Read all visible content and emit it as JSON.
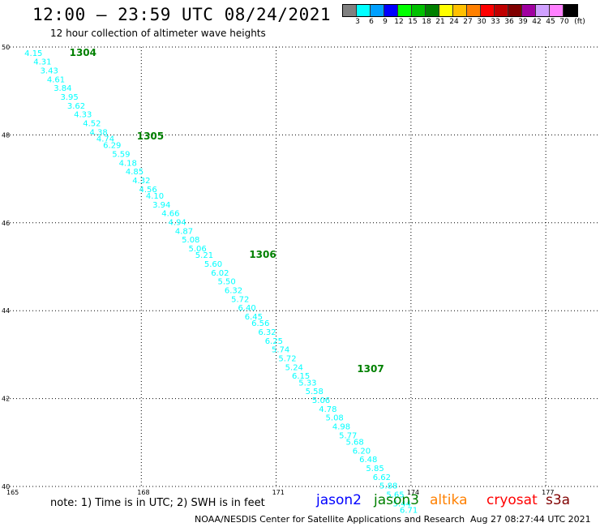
{
  "header": {
    "title": "12:00 – 23:59 UTC 08/24/2021",
    "subtitle": "12 hour collection of altimeter wave heights"
  },
  "colorbar": {
    "labels": [
      "3",
      "6",
      "9",
      "12",
      "15",
      "18",
      "21",
      "24",
      "27",
      "30",
      "33",
      "36",
      "39",
      "42",
      "45",
      "70"
    ],
    "unit": "(ft)",
    "colors": [
      "#808080",
      "#00ffff",
      "#00a0ff",
      "#0000ff",
      "#00ff00",
      "#00c000",
      "#008000",
      "#ffff00",
      "#ffc000",
      "#ff8000",
      "#ff0000",
      "#c00000",
      "#800000",
      "#a000a0",
      "#d0a0ff",
      "#ff80ff",
      "#000000"
    ]
  },
  "footer": {
    "note": "note:  1) Time is in UTC;  2) SWH is in feet",
    "satellites": [
      {
        "name": "jason2",
        "color": "#0000ff"
      },
      {
        "name": "jason3",
        "color": "#008000"
      },
      {
        "name": "altika",
        "color": "#ff8000"
      },
      {
        "name": "cryosat",
        "color": "#ff0000"
      },
      {
        "name": "s3a",
        "color": "#800000"
      }
    ],
    "credit": "NOAA/NESDIS Center for Satellite Applications and Research",
    "timestamp": "Aug 27 08:27:44 UTC 2021"
  },
  "chart_data": {
    "type": "scatter",
    "xlim": [
      165,
      179
    ],
    "ylim": [
      40,
      50
    ],
    "xticks": [
      165,
      168,
      171,
      174,
      177
    ],
    "yticks": [
      40,
      42,
      44,
      46,
      48,
      50
    ],
    "grid": true,
    "point_color": "#00ffff",
    "time_label_color": "#008000",
    "time_labels": [
      {
        "text": "1304",
        "lon": 166.4,
        "lat": 49.8
      },
      {
        "text": "1305",
        "lon": 167.9,
        "lat": 47.9
      },
      {
        "text": "1306",
        "lon": 170.4,
        "lat": 45.2
      },
      {
        "text": "1307",
        "lon": 172.8,
        "lat": 42.6
      }
    ],
    "points": [
      {
        "lon": 165.4,
        "lat": 49.8,
        "swh": "4.15"
      },
      {
        "lon": 165.6,
        "lat": 49.6,
        "swh": "4.31"
      },
      {
        "lon": 165.75,
        "lat": 49.4,
        "swh": "3.43"
      },
      {
        "lon": 165.9,
        "lat": 49.2,
        "swh": "4.61"
      },
      {
        "lon": 166.05,
        "lat": 49.0,
        "swh": "3.84"
      },
      {
        "lon": 166.2,
        "lat": 48.8,
        "swh": "3.95"
      },
      {
        "lon": 166.35,
        "lat": 48.6,
        "swh": "3.62"
      },
      {
        "lon": 166.5,
        "lat": 48.4,
        "swh": "4.33"
      },
      {
        "lon": 166.7,
        "lat": 48.2,
        "swh": "4.52"
      },
      {
        "lon": 166.85,
        "lat": 48.0,
        "swh": "4.38"
      },
      {
        "lon": 167.0,
        "lat": 47.85,
        "swh": "4.74"
      },
      {
        "lon": 167.15,
        "lat": 47.7,
        "swh": "6.29"
      },
      {
        "lon": 167.35,
        "lat": 47.5,
        "swh": "5.59"
      },
      {
        "lon": 167.5,
        "lat": 47.3,
        "swh": "4.18"
      },
      {
        "lon": 167.65,
        "lat": 47.1,
        "swh": "4.85"
      },
      {
        "lon": 167.8,
        "lat": 46.9,
        "swh": "4.32"
      },
      {
        "lon": 167.95,
        "lat": 46.7,
        "swh": "4.56"
      },
      {
        "lon": 168.1,
        "lat": 46.55,
        "swh": "4.10"
      },
      {
        "lon": 168.25,
        "lat": 46.35,
        "swh": "3.94"
      },
      {
        "lon": 168.45,
        "lat": 46.15,
        "swh": "4.66"
      },
      {
        "lon": 168.6,
        "lat": 45.95,
        "swh": "4.94"
      },
      {
        "lon": 168.75,
        "lat": 45.75,
        "swh": "4.87"
      },
      {
        "lon": 168.9,
        "lat": 45.55,
        "swh": "5.08"
      },
      {
        "lon": 169.05,
        "lat": 45.35,
        "swh": "5.06"
      },
      {
        "lon": 169.2,
        "lat": 45.2,
        "swh": "5.21"
      },
      {
        "lon": 169.4,
        "lat": 45.0,
        "swh": "5.60"
      },
      {
        "lon": 169.55,
        "lat": 44.8,
        "swh": "6.02"
      },
      {
        "lon": 169.7,
        "lat": 44.6,
        "swh": "5.50"
      },
      {
        "lon": 169.85,
        "lat": 44.4,
        "swh": "6.32"
      },
      {
        "lon": 170.0,
        "lat": 44.2,
        "swh": "5.72"
      },
      {
        "lon": 170.15,
        "lat": 44.0,
        "swh": "6.40"
      },
      {
        "lon": 170.3,
        "lat": 43.8,
        "swh": "6.45"
      },
      {
        "lon": 170.45,
        "lat": 43.65,
        "swh": "6.56"
      },
      {
        "lon": 170.6,
        "lat": 43.45,
        "swh": "6.32"
      },
      {
        "lon": 170.75,
        "lat": 43.25,
        "swh": "6.25"
      },
      {
        "lon": 170.9,
        "lat": 43.05,
        "swh": "5.74"
      },
      {
        "lon": 171.05,
        "lat": 42.85,
        "swh": "5.72"
      },
      {
        "lon": 171.2,
        "lat": 42.65,
        "swh": "5.24"
      },
      {
        "lon": 171.35,
        "lat": 42.45,
        "swh": "6.15"
      },
      {
        "lon": 171.5,
        "lat": 42.3,
        "swh": "5.33"
      },
      {
        "lon": 171.65,
        "lat": 42.1,
        "swh": "5.58"
      },
      {
        "lon": 171.8,
        "lat": 41.9,
        "swh": "5.06"
      },
      {
        "lon": 171.95,
        "lat": 41.7,
        "swh": "4.78"
      },
      {
        "lon": 172.1,
        "lat": 41.5,
        "swh": "5.08"
      },
      {
        "lon": 172.25,
        "lat": 41.3,
        "swh": "4.98"
      },
      {
        "lon": 172.4,
        "lat": 41.1,
        "swh": "5.77"
      },
      {
        "lon": 172.55,
        "lat": 40.95,
        "swh": "5.68"
      },
      {
        "lon": 172.7,
        "lat": 40.75,
        "swh": "6.20"
      },
      {
        "lon": 172.85,
        "lat": 40.55,
        "swh": "6.48"
      },
      {
        "lon": 173.0,
        "lat": 40.35,
        "swh": "5.85"
      },
      {
        "lon": 173.15,
        "lat": 40.15,
        "swh": "6.62"
      },
      {
        "lon": 173.3,
        "lat": 39.95,
        "swh": "5.88"
      },
      {
        "lon": 173.45,
        "lat": 39.75,
        "swh": "5.65"
      },
      {
        "lon": 173.6,
        "lat": 39.55,
        "swh": "5.44"
      },
      {
        "lon": 173.75,
        "lat": 39.4,
        "swh": "6.71"
      }
    ]
  }
}
